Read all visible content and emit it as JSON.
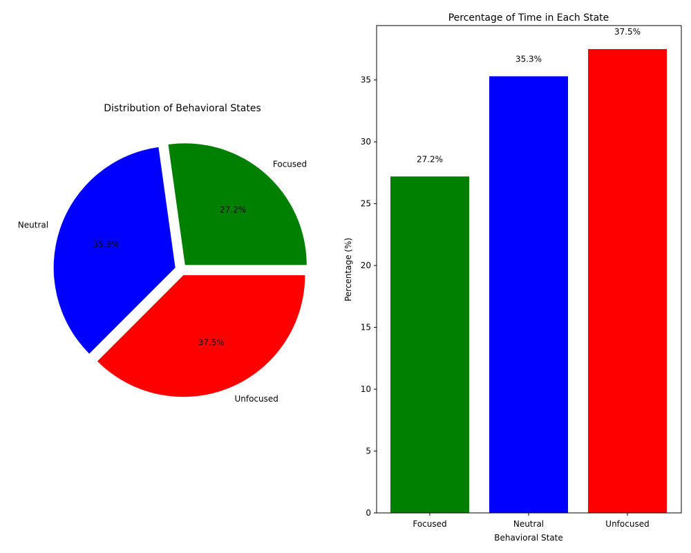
{
  "chart_data": [
    {
      "type": "pie",
      "title": "Distribution of Behavioral States",
      "labels": [
        "Focused",
        "Neutral",
        "Unfocused"
      ],
      "values": [
        27.2,
        35.3,
        37.5
      ],
      "pct_labels": [
        "27.2%",
        "35.3%",
        "37.5%"
      ],
      "colors": [
        "#008000",
        "#0000ff",
        "#ff0000"
      ],
      "exploded": true
    },
    {
      "type": "bar",
      "title": "Percentage of Time in Each State",
      "categories": [
        "Focused",
        "Neutral",
        "Unfocused"
      ],
      "values": [
        27.2,
        35.3,
        37.5
      ],
      "value_labels": [
        "27.2%",
        "35.3%",
        "37.5%"
      ],
      "colors": [
        "#008000",
        "#0000ff",
        "#ff0000"
      ],
      "xlabel": "Behavioral State",
      "ylabel": "Percentage (%)",
      "ylim": [
        0,
        39.4
      ],
      "yticks": [
        "0",
        "5",
        "10",
        "15",
        "20",
        "25",
        "30",
        "35"
      ],
      "grid": false
    }
  ]
}
